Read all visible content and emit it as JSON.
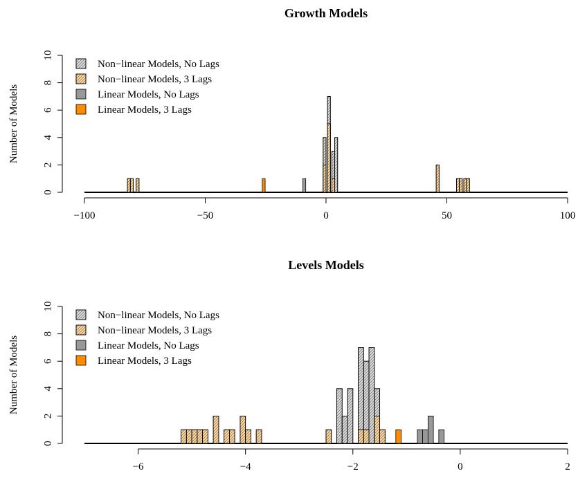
{
  "chart_data": [
    {
      "type": "bar",
      "title": "Growth Models",
      "xlabel": "",
      "ylabel": "Number of Models",
      "xlim": [
        -100,
        100
      ],
      "ylim": [
        0,
        10
      ],
      "x_ticks": [
        -100,
        -50,
        0,
        50,
        100
      ],
      "x_tick_labels": [
        "−100",
        "−50",
        "0",
        "50",
        "100"
      ],
      "y_ticks": [
        0,
        2,
        4,
        6,
        8,
        10
      ],
      "y_tick_labels": [
        "0",
        "2",
        "4",
        "6",
        "8",
        "10"
      ],
      "bin_width": 1.2,
      "legend_position": "top-left",
      "series": [
        {
          "name": "Non−linear Models, No Lags",
          "key": "nl0",
          "color": "#d9d9d9",
          "hatched": true,
          "bars": [
            [
              -0.6,
              4
            ],
            [
              1.2,
              7
            ],
            [
              3.0,
              3
            ],
            [
              4.2,
              4
            ]
          ]
        },
        {
          "name": "Non−linear Models, 3 Lags",
          "key": "nl3",
          "color": "#ffd699",
          "hatched": true,
          "bars": [
            [
              -81.6,
              1
            ],
            [
              -80.4,
              1
            ],
            [
              -78.0,
              1
            ],
            [
              -0.6,
              2
            ],
            [
              1.2,
              5
            ],
            [
              3.0,
              1
            ],
            [
              46.2,
              2
            ],
            [
              54.6,
              1
            ],
            [
              55.8,
              1
            ],
            [
              57.6,
              1
            ],
            [
              58.8,
              1
            ]
          ]
        },
        {
          "name": "Linear Models, No Lags",
          "key": "l0",
          "color": "#999999",
          "hatched": false,
          "bars": [
            [
              -9.0,
              1
            ]
          ]
        },
        {
          "name": "Linear Models, 3 Lags",
          "key": "l3",
          "color": "#ff8c00",
          "hatched": false,
          "bars": [
            [
              -25.8,
              1
            ]
          ]
        }
      ]
    },
    {
      "type": "bar",
      "title": "Levels Models",
      "xlabel": "",
      "ylabel": "Number of Models",
      "xlim": [
        -7,
        2
      ],
      "ylim": [
        0,
        10
      ],
      "x_ticks": [
        -6,
        -4,
        -2,
        0,
        2
      ],
      "x_tick_labels": [
        "−6",
        "−4",
        "−2",
        "0",
        "2"
      ],
      "y_ticks": [
        0,
        2,
        4,
        6,
        8,
        10
      ],
      "y_tick_labels": [
        "0",
        "2",
        "4",
        "6",
        "8",
        "10"
      ],
      "bin_width": 0.1,
      "legend_position": "top-left",
      "series": [
        {
          "name": "Non−linear Models, No Lags",
          "key": "nl0",
          "color": "#d9d9d9",
          "hatched": true,
          "bars": [
            [
              -2.25,
              4
            ],
            [
              -2.15,
              2
            ],
            [
              -2.05,
              4
            ],
            [
              -1.85,
              7
            ],
            [
              -1.75,
              6
            ],
            [
              -1.65,
              7
            ],
            [
              -1.55,
              4
            ]
          ]
        },
        {
          "name": "Non−linear Models, 3 Lags",
          "key": "nl3",
          "color": "#ffd699",
          "hatched": true,
          "bars": [
            [
              -5.15,
              1
            ],
            [
              -5.05,
              1
            ],
            [
              -4.95,
              1
            ],
            [
              -4.85,
              1
            ],
            [
              -4.75,
              1
            ],
            [
              -4.55,
              2
            ],
            [
              -4.35,
              1
            ],
            [
              -4.25,
              1
            ],
            [
              -4.05,
              2
            ],
            [
              -3.95,
              1
            ],
            [
              -3.75,
              1
            ],
            [
              -2.45,
              1
            ],
            [
              -1.85,
              1
            ],
            [
              -1.75,
              1
            ],
            [
              -1.55,
              2
            ],
            [
              -1.45,
              1
            ]
          ]
        },
        {
          "name": "Linear Models, No Lags",
          "key": "l0",
          "color": "#999999",
          "hatched": false,
          "bars": [
            [
              -0.75,
              1
            ],
            [
              -0.65,
              1
            ],
            [
              -0.55,
              2
            ],
            [
              -0.35,
              1
            ]
          ]
        },
        {
          "name": "Linear Models, 3 Lags",
          "key": "l3",
          "color": "#ff8c00",
          "hatched": false,
          "bars": [
            [
              -1.15,
              1
            ]
          ]
        }
      ]
    }
  ]
}
